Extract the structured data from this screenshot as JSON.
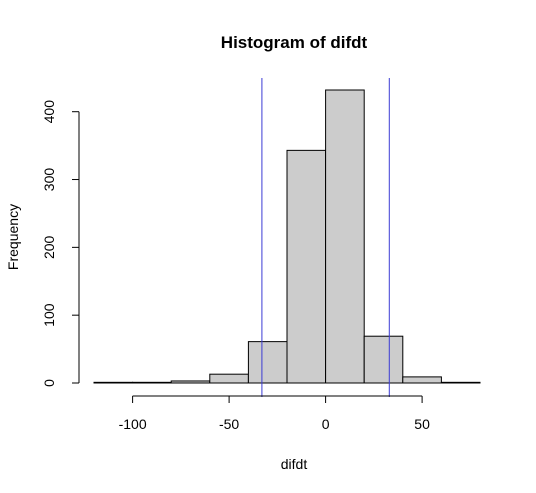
{
  "chart_data": {
    "type": "bar",
    "title": "Histogram of difdt",
    "xlabel": "difdt",
    "ylabel": "Frequency",
    "bins": [
      {
        "from": -120,
        "to": -100,
        "count": 1
      },
      {
        "from": -100,
        "to": -80,
        "count": 1
      },
      {
        "from": -80,
        "to": -60,
        "count": 3
      },
      {
        "from": -60,
        "to": -40,
        "count": 13
      },
      {
        "from": -40,
        "to": -20,
        "count": 61
      },
      {
        "from": -20,
        "to": 0,
        "count": 343
      },
      {
        "from": 0,
        "to": 20,
        "count": 432
      },
      {
        "from": 20,
        "to": 40,
        "count": 69
      },
      {
        "from": 40,
        "to": 60,
        "count": 9
      },
      {
        "from": 60,
        "to": 80,
        "count": 1
      }
    ],
    "xticks": [
      -100,
      -50,
      0,
      50
    ],
    "yticks": [
      0,
      100,
      200,
      300,
      400
    ],
    "xlim": [
      -120,
      80
    ],
    "ylim": [
      0,
      432
    ],
    "vlines": [
      -33,
      33
    ],
    "colors": {
      "bar_fill": "#cccccc",
      "bar_stroke": "#000000",
      "vline": "#3b3bd4"
    },
    "grid": false
  }
}
